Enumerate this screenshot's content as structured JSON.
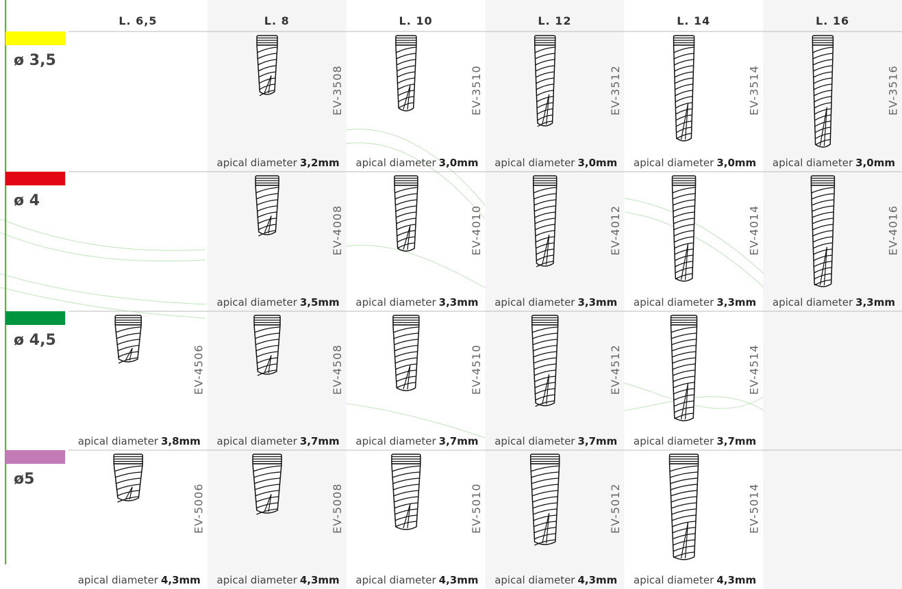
{
  "columns": [
    "L. 6,5",
    "L. 8",
    "L. 10",
    "L. 12",
    "L. 14",
    "L. 16"
  ],
  "rows": [
    {
      "label": "ø 3,5",
      "color": "#ffff00",
      "cells": [
        null,
        {
          "code": "EV-3508",
          "apical_label": "apical diameter",
          "apical_value": "3,2mm"
        },
        {
          "code": "EV-3510",
          "apical_label": "apical diameter",
          "apical_value": "3,0mm"
        },
        {
          "code": "EV-3512",
          "apical_label": "apical diameter",
          "apical_value": "3,0mm"
        },
        {
          "code": "EV-3514",
          "apical_label": "apical diameter",
          "apical_value": "3,0mm"
        },
        {
          "code": "EV-3516",
          "apical_label": "apical diameter",
          "apical_value": "3,0mm"
        }
      ]
    },
    {
      "label": "ø 4",
      "color": "#e30613",
      "cells": [
        null,
        {
          "code": "EV-4008",
          "apical_label": "apical diameter",
          "apical_value": "3,5mm"
        },
        {
          "code": "EV-4010",
          "apical_label": "apical diameter",
          "apical_value": "3,3mm"
        },
        {
          "code": "EV-4012",
          "apical_label": "apical diameter",
          "apical_value": "3,3mm"
        },
        {
          "code": "EV-4014",
          "apical_label": "apical diameter",
          "apical_value": "3,3mm"
        },
        {
          "code": "EV-4016",
          "apical_label": "apical diameter",
          "apical_value": "3,3mm"
        }
      ]
    },
    {
      "label": "ø 4,5",
      "color": "#009640",
      "cells": [
        {
          "code": "EV-4506",
          "apical_label": "apical diameter",
          "apical_value": "3,8mm"
        },
        {
          "code": "EV-4508",
          "apical_label": "apical diameter",
          "apical_value": "3,7mm"
        },
        {
          "code": "EV-4510",
          "apical_label": "apical diameter",
          "apical_value": "3,7mm"
        },
        {
          "code": "EV-4512",
          "apical_label": "apical diameter",
          "apical_value": "3,7mm"
        },
        {
          "code": "EV-4514",
          "apical_label": "apical diameter",
          "apical_value": "3,7mm"
        },
        null
      ]
    },
    {
      "label": "ø5",
      "color": "#c27bb6",
      "cells": [
        {
          "code": "EV-5006",
          "apical_label": "apical diameter",
          "apical_value": "4,3mm"
        },
        {
          "code": "EV-5008",
          "apical_label": "apical diameter",
          "apical_value": "4,3mm"
        },
        {
          "code": "EV-5010",
          "apical_label": "apical diameter",
          "apical_value": "4,3mm"
        },
        {
          "code": "EV-5012",
          "apical_label": "apical diameter",
          "apical_value": "4,3mm"
        },
        {
          "code": "EV-5014",
          "apical_label": "apical diameter",
          "apical_value": "4,3mm"
        },
        null
      ]
    }
  ]
}
